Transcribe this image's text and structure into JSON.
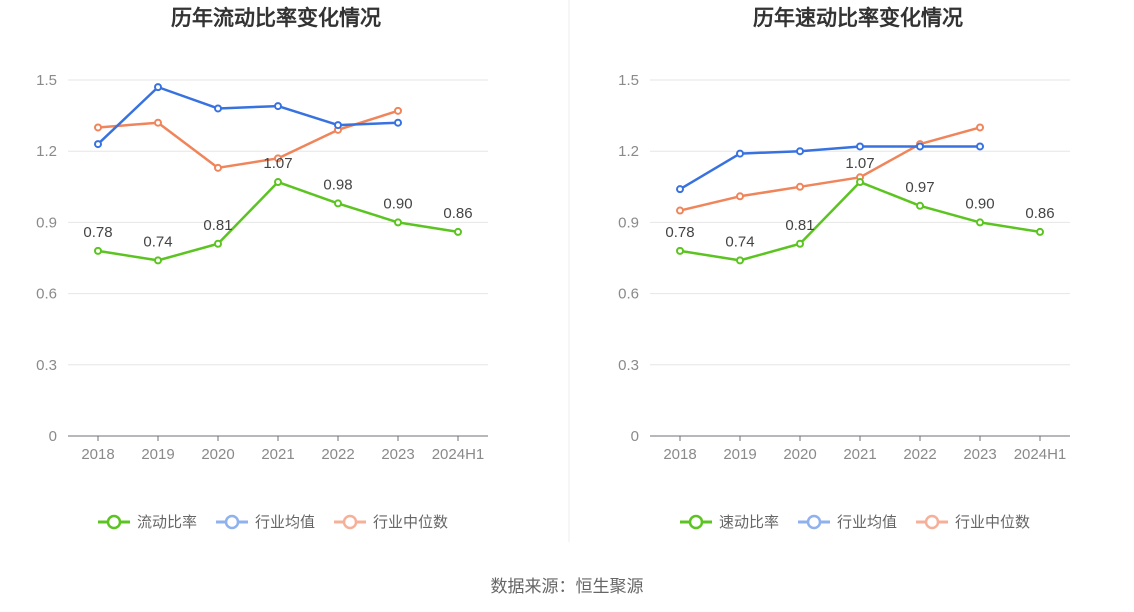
{
  "source": "数据来源：恒生聚源",
  "chart_data": [
    {
      "type": "line",
      "title": "历年流动比率变化情况",
      "categories": [
        "2018",
        "2019",
        "2020",
        "2021",
        "2022",
        "2023",
        "2024H1"
      ],
      "ylim": [
        0,
        1.5
      ],
      "yticks": [
        "0",
        "0.3",
        "0.6",
        "0.9",
        "1.2",
        "1.5"
      ],
      "series": [
        {
          "name": "流动比率",
          "color": "#5cc421",
          "labeled": true,
          "values": [
            0.78,
            0.74,
            0.81,
            1.07,
            0.98,
            0.9,
            0.86
          ],
          "labels": [
            "0.78",
            "0.74",
            "0.81",
            "1.07",
            "0.98",
            "0.90",
            "0.86"
          ]
        },
        {
          "name": "行业均值",
          "color": "#3872e0",
          "legend_color": "#8fb1ee",
          "labeled": false,
          "values": [
            1.23,
            1.47,
            1.38,
            1.39,
            1.31,
            1.32,
            null
          ]
        },
        {
          "name": "行业中位数",
          "color": "#f0845a",
          "legend_color": "#f6b09a",
          "labeled": false,
          "values": [
            1.3,
            1.32,
            1.13,
            1.17,
            1.29,
            1.37,
            null
          ]
        }
      ]
    },
    {
      "type": "line",
      "title": "历年速动比率变化情况",
      "categories": [
        "2018",
        "2019",
        "2020",
        "2021",
        "2022",
        "2023",
        "2024H1"
      ],
      "ylim": [
        0,
        1.5
      ],
      "yticks": [
        "0",
        "0.3",
        "0.6",
        "0.9",
        "1.2",
        "1.5"
      ],
      "series": [
        {
          "name": "速动比率",
          "color": "#5cc421",
          "labeled": true,
          "values": [
            0.78,
            0.74,
            0.81,
            1.07,
            0.97,
            0.9,
            0.86
          ],
          "labels": [
            "0.78",
            "0.74",
            "0.81",
            "1.07",
            "0.97",
            "0.90",
            "0.86"
          ]
        },
        {
          "name": "行业均值",
          "color": "#3872e0",
          "legend_color": "#8fb1ee",
          "labeled": false,
          "values": [
            1.04,
            1.19,
            1.2,
            1.22,
            1.22,
            1.22,
            null
          ]
        },
        {
          "name": "行业中位数",
          "color": "#f0845a",
          "legend_color": "#f6b09a",
          "labeled": false,
          "values": [
            0.95,
            1.01,
            1.05,
            1.09,
            1.23,
            1.3,
            null
          ]
        }
      ]
    }
  ]
}
